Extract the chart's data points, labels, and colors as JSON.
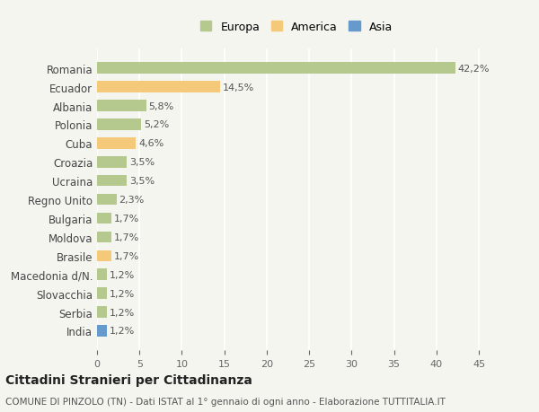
{
  "countries": [
    "Romania",
    "Ecuador",
    "Albania",
    "Polonia",
    "Cuba",
    "Croazia",
    "Ucraina",
    "Regno Unito",
    "Bulgaria",
    "Moldova",
    "Brasile",
    "Macedonia d/N.",
    "Slovacchia",
    "Serbia",
    "India"
  ],
  "values": [
    42.2,
    14.5,
    5.8,
    5.2,
    4.6,
    3.5,
    3.5,
    2.3,
    1.7,
    1.7,
    1.7,
    1.2,
    1.2,
    1.2,
    1.2
  ],
  "labels": [
    "42,2%",
    "14,5%",
    "5,8%",
    "5,2%",
    "4,6%",
    "3,5%",
    "3,5%",
    "2,3%",
    "1,7%",
    "1,7%",
    "1,7%",
    "1,2%",
    "1,2%",
    "1,2%",
    "1,2%"
  ],
  "continent": [
    "Europa",
    "America",
    "Europa",
    "Europa",
    "America",
    "Europa",
    "Europa",
    "Europa",
    "Europa",
    "Europa",
    "America",
    "Europa",
    "Europa",
    "Europa",
    "Asia"
  ],
  "colors": {
    "Europa": "#b5c98e",
    "America": "#f5c97a",
    "Asia": "#6699cc"
  },
  "legend_order": [
    "Europa",
    "America",
    "Asia"
  ],
  "background_color": "#f5f5f0",
  "title1": "Cittadini Stranieri per Cittadinanza",
  "title2": "COMUNE DI PINZOLO (TN) - Dati ISTAT al 1° gennaio di ogni anno - Elaborazione TUTTITALIA.IT",
  "xlim": [
    0,
    47
  ],
  "xticks": [
    0,
    5,
    10,
    15,
    20,
    25,
    30,
    35,
    40,
    45
  ]
}
